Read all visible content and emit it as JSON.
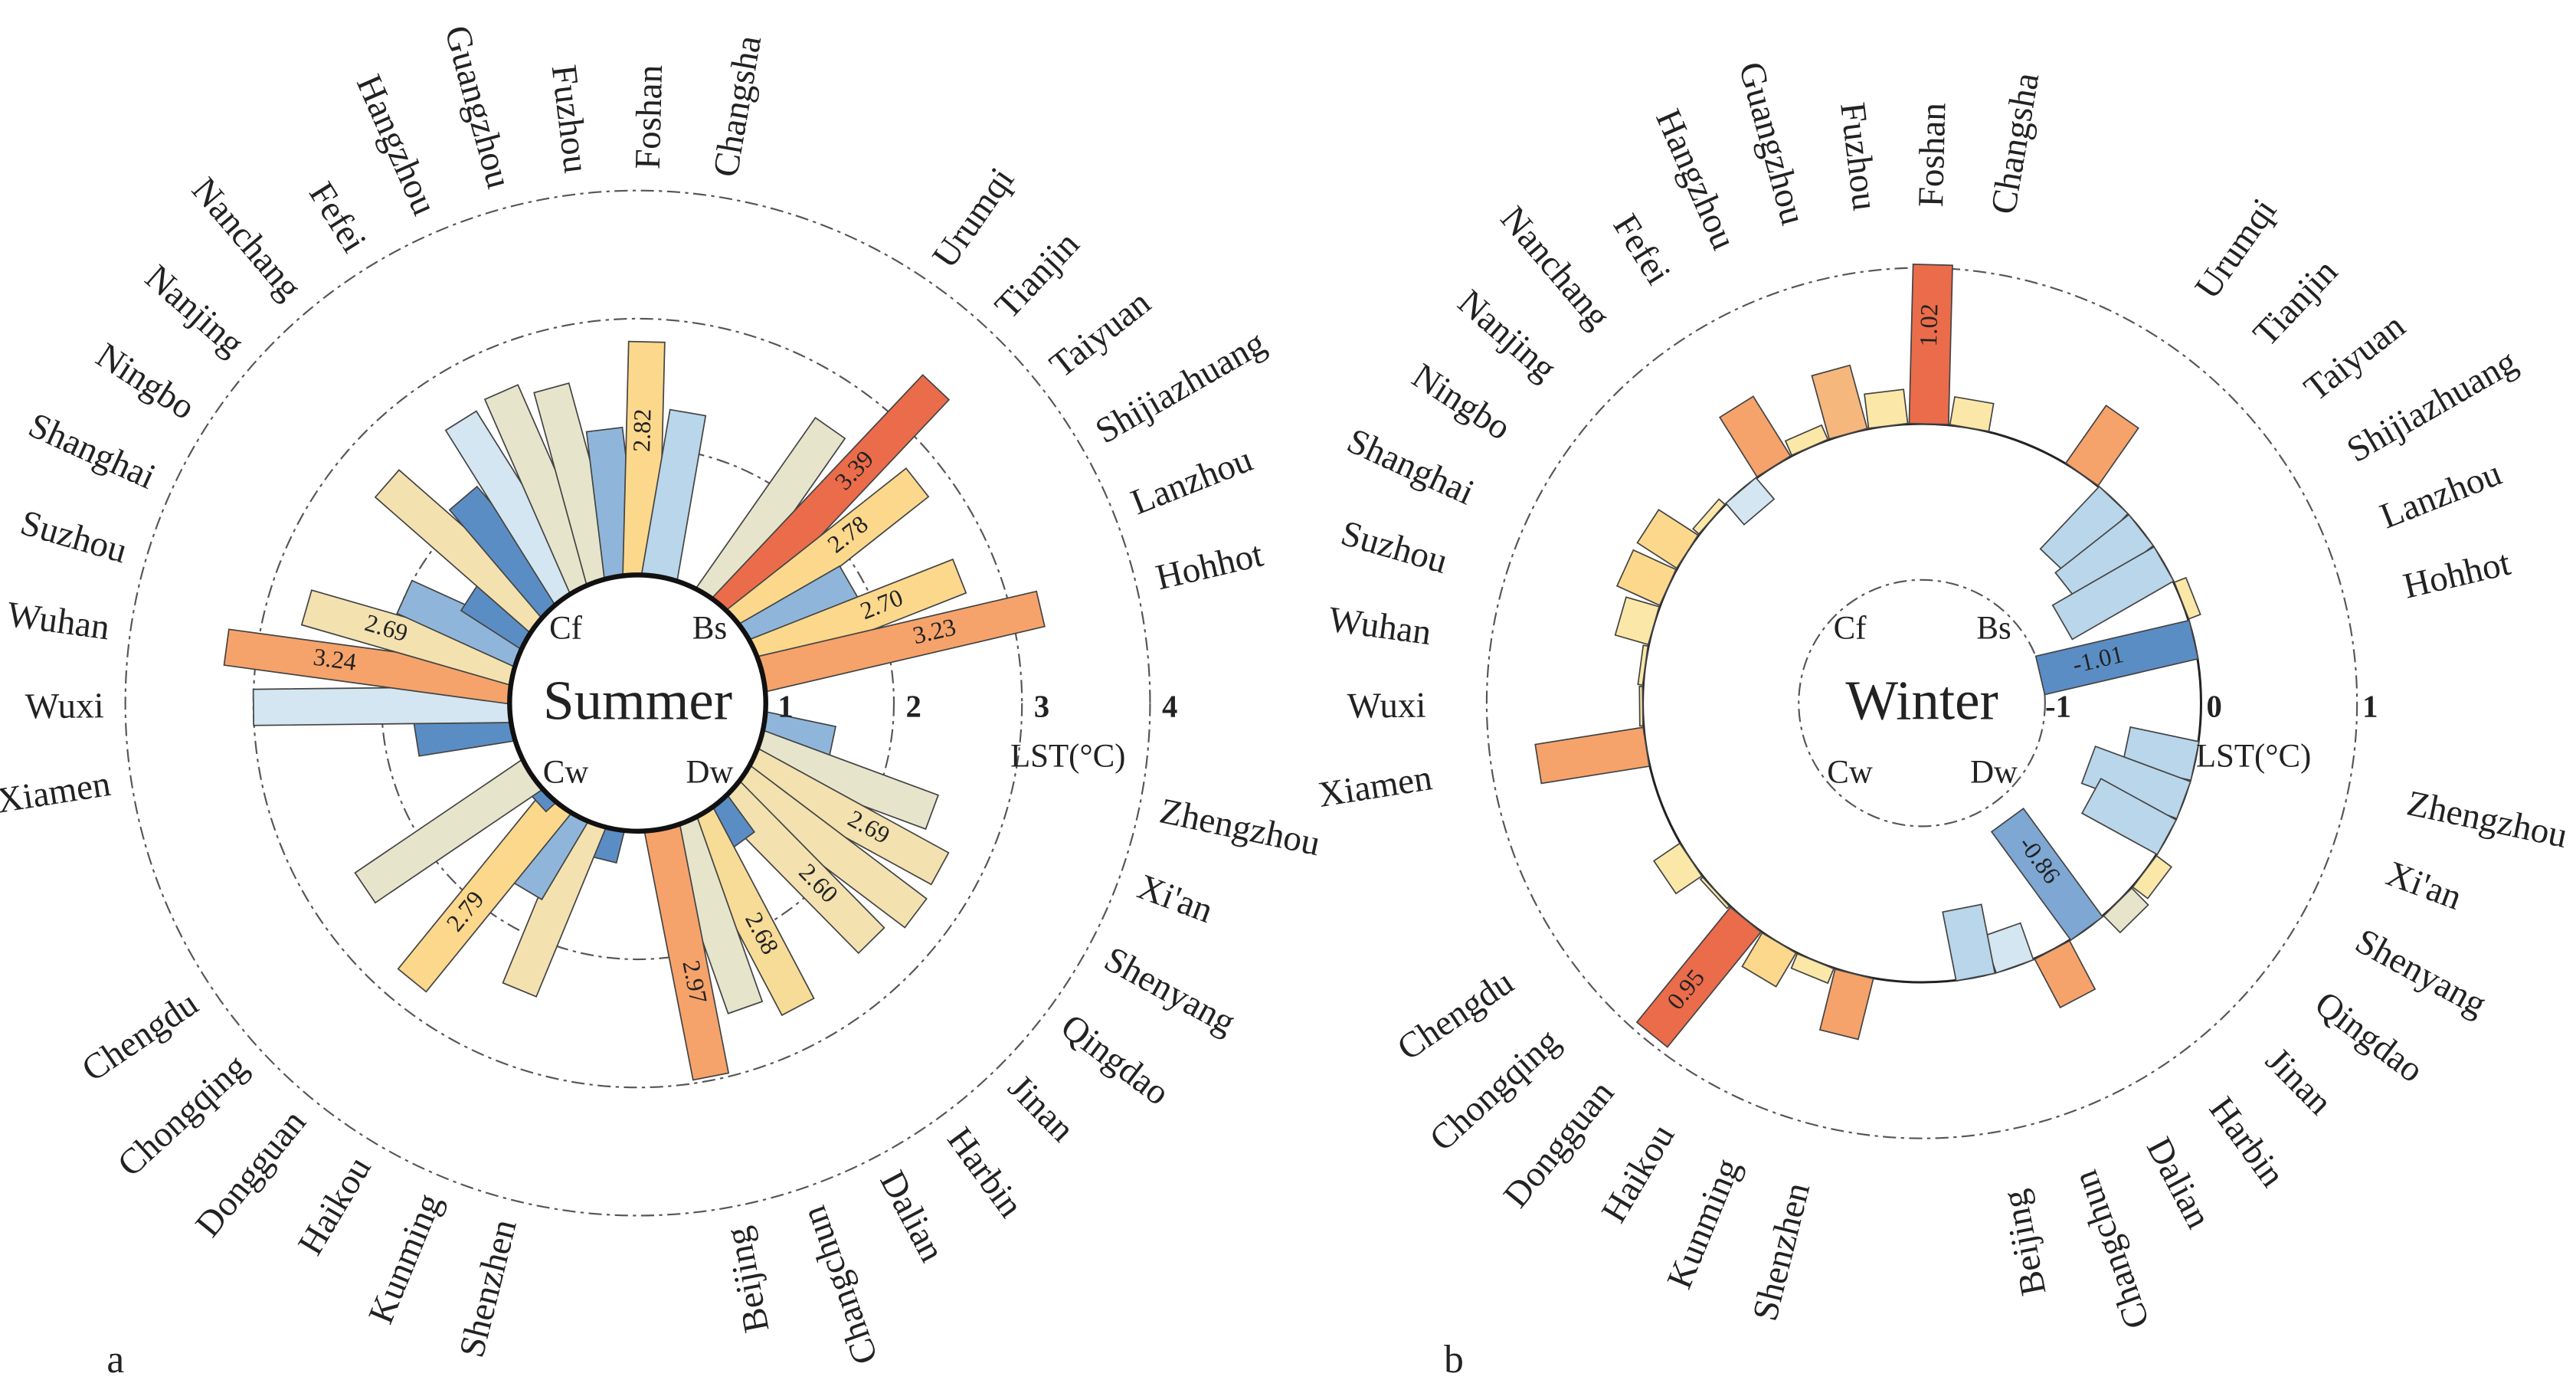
{
  "chart_data": [
    {
      "type": "polar_bar",
      "title": "Summer",
      "panel_label": "a",
      "axis_label": "LST(°C)",
      "ylim": [
        0,
        4
      ],
      "yticks": [
        1,
        2,
        3,
        4
      ],
      "grid": true,
      "groups": [
        {
          "name": "Bs",
          "categories": [
            "Urumqi",
            "Tianjin",
            "Taiyuan",
            "Shijiazhuang",
            "Lanzhou",
            "Hohhot"
          ],
          "values": [
            2.62,
            3.39,
            2.78,
            1.9,
            2.7,
            3.23
          ],
          "colors": [
            "#e6e5cc",
            "#ea6c4b",
            "#fbd88c",
            "#8fb6da",
            "#fbd88c",
            "#f5a36b"
          ],
          "value_labels": [
            null,
            "3.39",
            "2.78",
            null,
            "2.70",
            "3.23"
          ]
        },
        {
          "name": "Dw",
          "categories": [
            "Zhengzhou",
            "Xi'an",
            "Shenyang",
            "Qingdao",
            "Jinan",
            "Harbin",
            "Dalian",
            "Changchun",
            "Beijing"
          ],
          "values": [
            1.55,
            2.45,
            2.69,
            2.72,
            2.6,
            1.35,
            2.68,
            2.52,
            2.97
          ],
          "colors": [
            "#8fb6da",
            "#e6e5cc",
            "#f3e2b0",
            "#f3e2b0",
            "#f3e2b0",
            "#5b8dc5",
            "#f6dc96",
            "#e6e5cc",
            "#f5a36b"
          ],
          "value_labels": [
            null,
            null,
            "2.69",
            null,
            "2.60",
            null,
            "2.68",
            null,
            "2.97"
          ]
        },
        {
          "name": "Cw",
          "categories": [
            "Shenzhen",
            "Kunming",
            "Haikou",
            "Dongguan",
            "Chongqing",
            "Chengdu"
          ],
          "values": [
            1.25,
            2.42,
            1.7,
            2.79,
            1.1,
            2.57
          ],
          "colors": [
            "#5b8dc5",
            "#f3e2b0",
            "#8fb6da",
            "#fbd88c",
            "#5b8dc5",
            "#e6e5cc"
          ],
          "value_labels": [
            null,
            null,
            null,
            "2.79",
            null,
            null
          ]
        },
        {
          "name": "Cf",
          "categories": [
            "Xiamen",
            "Wuxi",
            "Wuhan",
            "Suzhou",
            "Shanghai",
            "Ningbo",
            "Nanjing",
            "Nanchang",
            "Fefei",
            "Hangzhou",
            "Guangzhou",
            "Fuzhou",
            "Foshan",
            "Changsha"
          ],
          "values": [
            1.75,
            3.0,
            3.24,
            2.69,
            2.0,
            1.55,
            2.6,
            2.1,
            2.6,
            2.65,
            2.55,
            2.15,
            2.82,
            2.3
          ],
          "colors": [
            "#5b8dc5",
            "#d3e6f1",
            "#f5a36b",
            "#f3e2b0",
            "#8fb6da",
            "#5b8dc5",
            "#f3e2b0",
            "#5b8dc5",
            "#d3e6f1",
            "#e6e5cc",
            "#e6e5cc",
            "#8fb6da",
            "#fbd88c",
            "#b9d6ea"
          ],
          "value_labels": [
            null,
            null,
            "3.24",
            "2.69",
            null,
            null,
            null,
            null,
            null,
            null,
            null,
            null,
            "2.82",
            null
          ]
        }
      ]
    },
    {
      "type": "polar_bar",
      "title": "Winter",
      "panel_label": "b",
      "axis_label": "LST(°C)",
      "ylim": [
        -1.5,
        1.5
      ],
      "yticks": [
        -1,
        0,
        1
      ],
      "grid": true,
      "groups": [
        {
          "name": "Bs",
          "categories": [
            "Urumqi",
            "Tianjin",
            "Taiyuan",
            "Shijiazhuang",
            "Lanzhou",
            "Hohhot"
          ],
          "values": [
            0.45,
            -0.55,
            -0.6,
            -0.75,
            0.08,
            -1.01
          ],
          "colors": [
            "#f5a36b",
            "#b9d6ea",
            "#b9d6ea",
            "#b9d6ea",
            "#fbe8a8",
            "#5b8dc5"
          ],
          "value_labels": [
            null,
            null,
            null,
            null,
            null,
            "-1.01"
          ]
        },
        {
          "name": "Dw",
          "categories": [
            "Zhengzhou",
            "Xi'an",
            "Shenyang",
            "Qingdao",
            "Jinan",
            "Harbin",
            "Dalian",
            "Changchun",
            "Beijing"
          ],
          "values": [
            -0.45,
            -0.65,
            -0.55,
            0.12,
            0.15,
            -0.86,
            0.35,
            -0.25,
            -0.45
          ],
          "colors": [
            "#b9d6ea",
            "#b9d6ea",
            "#b9d6ea",
            "#fbe8a8",
            "#e6e5cc",
            "#7ea7d3",
            "#f5a36b",
            "#d3e6f1",
            "#b9d6ea"
          ],
          "value_labels": [
            null,
            null,
            null,
            null,
            null,
            "-0.86",
            null,
            null,
            null
          ]
        },
        {
          "name": "Cw",
          "categories": [
            "Shenzhen",
            "Kunming",
            "Haikou",
            "Dongguan",
            "Chongqing",
            "Chengdu"
          ],
          "values": [
            0.4,
            0.1,
            0.25,
            0.95,
            0.02,
            0.2
          ],
          "colors": [
            "#f5a36b",
            "#fbe8a8",
            "#fbd88c",
            "#ea6c4b",
            "#fbe8a8",
            "#fbe8a8"
          ],
          "value_labels": [
            null,
            null,
            null,
            "0.95",
            null,
            null
          ]
        },
        {
          "name": "Cf",
          "categories": [
            "Xiamen",
            "Wuxi",
            "Wuhan",
            "Suzhou",
            "Shanghai",
            "Ningbo",
            "Nanjing",
            "Nanchang",
            "Fefei",
            "Hangzhou",
            "Guangzhou",
            "Fuzhou",
            "Foshan",
            "Changsha"
          ],
          "values": [
            0.7,
            0.02,
            0.03,
            0.22,
            0.3,
            0.3,
            0.05,
            -0.18,
            0.45,
            0.1,
            0.42,
            0.22,
            1.02,
            0.18
          ],
          "colors": [
            "#f5a36b",
            "#fbe8a8",
            "#fbe8a8",
            "#fbe8a8",
            "#fbd88c",
            "#fbd88c",
            "#fbe8a8",
            "#d3e6f1",
            "#f5a36b",
            "#fbe8a8",
            "#f6b77d",
            "#fbe8a8",
            "#ea6c4b",
            "#fbe8a8"
          ],
          "value_labels": [
            null,
            null,
            null,
            null,
            null,
            null,
            null,
            null,
            null,
            null,
            null,
            null,
            "1.02",
            null
          ]
        }
      ]
    }
  ]
}
